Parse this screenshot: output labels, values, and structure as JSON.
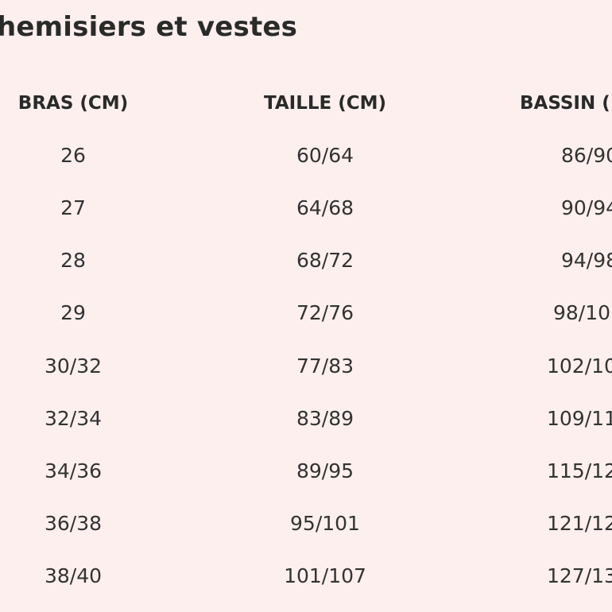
{
  "title": "hemisiers et vestes",
  "headers": {
    "bras": "BRAS (CM)",
    "taille": "TAILLE (CM)",
    "bassin": "BASSIN ("
  },
  "rows": [
    {
      "bras": "26",
      "taille": "60/64",
      "bassin": "86/90"
    },
    {
      "bras": "27",
      "taille": "64/68",
      "bassin": "90/94"
    },
    {
      "bras": "28",
      "taille": "68/72",
      "bassin": "94/98"
    },
    {
      "bras": "29",
      "taille": "72/76",
      "bassin": "98/10"
    },
    {
      "bras": "30/32",
      "taille": "77/83",
      "bassin": "102/10"
    },
    {
      "bras": "32/34",
      "taille": "83/89",
      "bassin": "109/11"
    },
    {
      "bras": "34/36",
      "taille": "89/95",
      "bassin": "115/12"
    },
    {
      "bras": "36/38",
      "taille": "95/101",
      "bassin": "121/12"
    },
    {
      "bras": "38/40",
      "taille": "101/107",
      "bassin": "127/13"
    }
  ]
}
